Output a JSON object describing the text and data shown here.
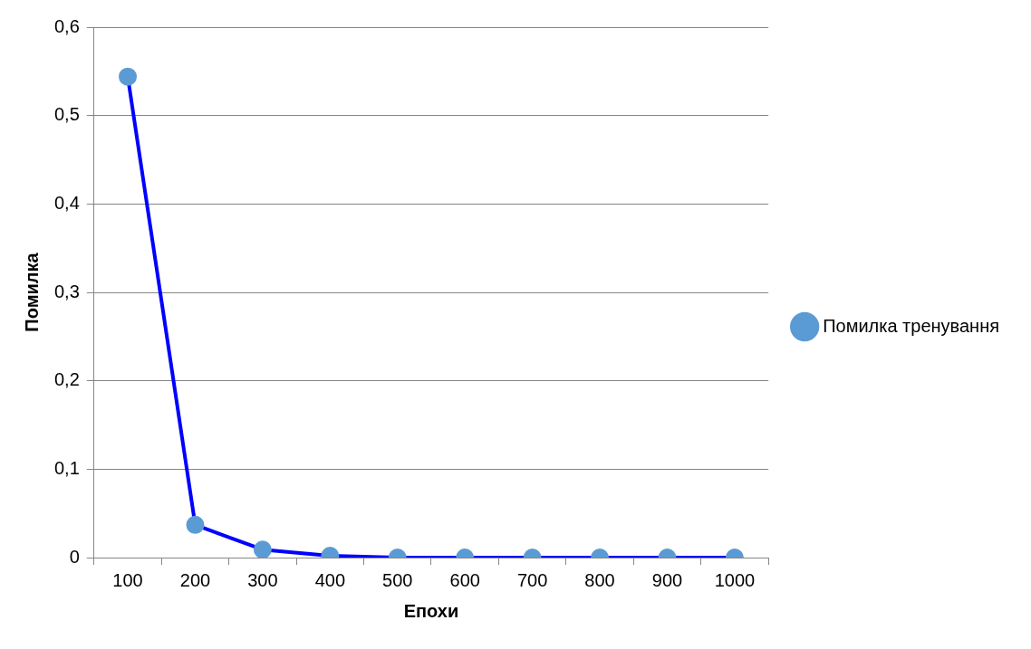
{
  "chart_data": {
    "type": "line",
    "xlabel": "Епохи",
    "ylabel": "Помилка",
    "categories": [
      "100",
      "200",
      "300",
      "400",
      "500",
      "600",
      "700",
      "800",
      "900",
      "1000"
    ],
    "series": [
      {
        "name": "Помилка тренування",
        "color": "#0000ff",
        "values": [
          0.544,
          0.037,
          0.009,
          0.002,
          0,
          0,
          0,
          0,
          0,
          0
        ]
      }
    ],
    "ylim": [
      0,
      0.6
    ],
    "yticks": [
      {
        "value": 0,
        "label": "0"
      },
      {
        "value": 0.1,
        "label": "0,1"
      },
      {
        "value": 0.2,
        "label": "0,2"
      },
      {
        "value": 0.3,
        "label": "0,3"
      },
      {
        "value": 0.4,
        "label": "0,4"
      },
      {
        "value": 0.5,
        "label": "0,5"
      },
      {
        "value": 0.6,
        "label": "0,6"
      }
    ],
    "grid": "y",
    "legend": "right",
    "marker": "circle",
    "line_style": "solid"
  }
}
